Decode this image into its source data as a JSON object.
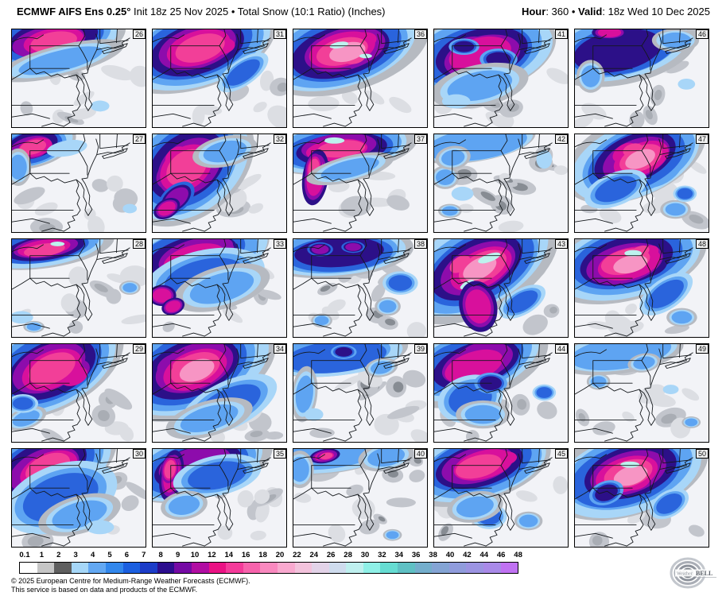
{
  "header": {
    "left_bold": "ECMWF AIFS Ens 0.25°",
    "left_rest": " Init 18z 25 Nov 2025 • Total Snow (10:1 Ratio) (Inches)",
    "right_bold1": "Hour",
    "right_text1": ": 360 • ",
    "right_bold2": "Valid",
    "right_text2": ": 18z Wed 10 Dec 2025"
  },
  "members": [
    "26",
    "31",
    "36",
    "41",
    "46",
    "27",
    "32",
    "37",
    "42",
    "47",
    "28",
    "33",
    "38",
    "43",
    "48",
    "29",
    "34",
    "39",
    "44",
    "49",
    "30",
    "35",
    "40",
    "45",
    "50"
  ],
  "colorbar": {
    "labels": [
      "0.1",
      "1",
      "2",
      "3",
      "4",
      "5",
      "6",
      "7",
      "8",
      "9",
      "10",
      "12",
      "14",
      "16",
      "18",
      "20",
      "22",
      "24",
      "26",
      "28",
      "30",
      "32",
      "34",
      "36",
      "38",
      "40",
      "42",
      "44",
      "46",
      "48"
    ],
    "colors": [
      "#ffffff",
      "#c6c6c6",
      "#5f5f5f",
      "#a6d7f8",
      "#63a8f2",
      "#3287ec",
      "#1b5fe0",
      "#1c3dc8",
      "#2c0e8e",
      "#750aa4",
      "#b10da2",
      "#ea1284",
      "#f43b9a",
      "#f763ac",
      "#f989bf",
      "#f9a9cf",
      "#f3c3dc",
      "#e3d3e8",
      "#cfdcee",
      "#bff0ef",
      "#8ff0e7",
      "#66dcd2",
      "#5fc0c4",
      "#74aecc",
      "#84a4d4",
      "#909cdc",
      "#9c94e2",
      "#a98ae8",
      "#c072f2"
    ]
  },
  "footer": {
    "line1": "© 2025 European Centre for Medium-Range Weather Forecasts (ECMWF).",
    "line2": "This service is based on data and products of the ECMWF."
  },
  "logo": {
    "part1": "Weather",
    "part2": "BELL"
  }
}
